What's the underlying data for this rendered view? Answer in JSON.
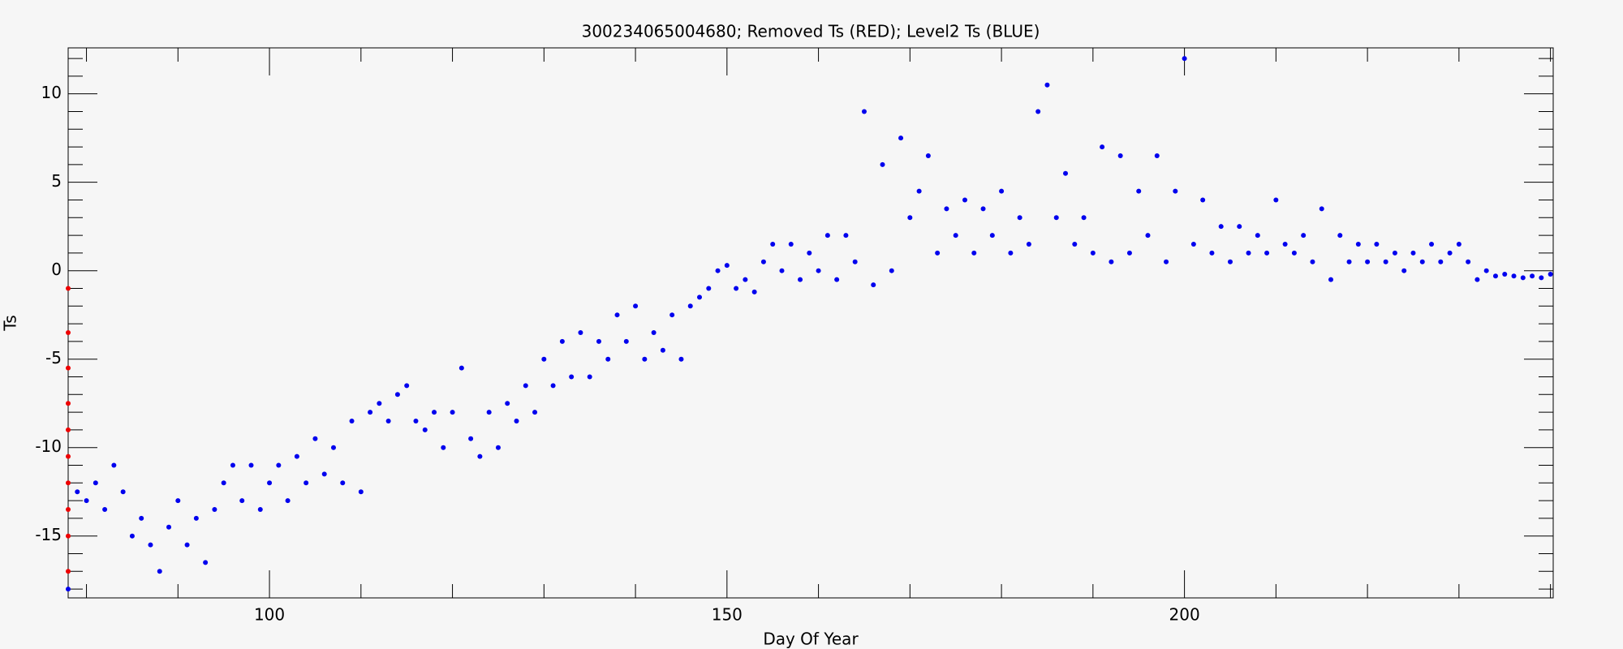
{
  "chart_data": {
    "type": "scatter",
    "title": "300234065004680; Removed Ts (RED); Level2 Ts (BLUE)",
    "xlabel": "Day Of Year",
    "ylabel": "Ts",
    "xlim": [
      78,
      240.3
    ],
    "ylim": [
      -18.5,
      12.6
    ],
    "xticks": [
      100,
      150,
      200
    ],
    "xminorticks": [
      80,
      90,
      110,
      120,
      130,
      140,
      160,
      170,
      180,
      190,
      210,
      220,
      230,
      240
    ],
    "yticks": [
      -15,
      -10,
      -5,
      0,
      5,
      10
    ],
    "yminorticks": [
      -18,
      -17,
      -16,
      -14,
      -13,
      -12,
      -11,
      -9,
      -8,
      -7,
      -6,
      -4,
      -3,
      -2,
      -1,
      1,
      2,
      3,
      4,
      6,
      7,
      8,
      9,
      11,
      12
    ],
    "series": [
      {
        "color": "#0000ee",
        "x": [
          78,
          79,
          80,
          81,
          82,
          83,
          84,
          85,
          86,
          87,
          88,
          89,
          90,
          91,
          92,
          93,
          94,
          95,
          96,
          97,
          98,
          99,
          100,
          101,
          102,
          103,
          104,
          105,
          106,
          107,
          108,
          109,
          110,
          111,
          112,
          113,
          114,
          115,
          116,
          117,
          118,
          119,
          120,
          121,
          122,
          123,
          124,
          125,
          126,
          127,
          128,
          129,
          130,
          131,
          132,
          133,
          134,
          135,
          136,
          137,
          138,
          139,
          140,
          141,
          142,
          143,
          144,
          145,
          146,
          147,
          148,
          149,
          150,
          151,
          152,
          153,
          154,
          155,
          156,
          157,
          158,
          159,
          160,
          161,
          162,
          163,
          164,
          165,
          166,
          167,
          168,
          169,
          170,
          171,
          172,
          173,
          174,
          175,
          176,
          177,
          178,
          179,
          180,
          181,
          182,
          183,
          184,
          185,
          186,
          187,
          188,
          189,
          190,
          191,
          192,
          193,
          194,
          195,
          196,
          197,
          198,
          199,
          200,
          201,
          202,
          203,
          204,
          205,
          206,
          207,
          208,
          209,
          210,
          211,
          212,
          213,
          214,
          215,
          216,
          217,
          218,
          219,
          220,
          221,
          222,
          223,
          224,
          225,
          226,
          227,
          228,
          229,
          230,
          231,
          232,
          233,
          234,
          235,
          236,
          237,
          238,
          239,
          240
        ],
        "y": [
          -18,
          -12.5,
          -13,
          -12,
          -13.5,
          -11,
          -12.5,
          -15,
          -14,
          -15.5,
          -17,
          -14.5,
          -13,
          -15.5,
          -14,
          -16.5,
          -13.5,
          -12,
          -11,
          -13,
          -11,
          -13.5,
          -12,
          -11,
          -13,
          -10.5,
          -12,
          -9.5,
          -11.5,
          -10,
          -12,
          -8.5,
          -12.5,
          -8,
          -7.5,
          -8.5,
          -7,
          -6.5,
          -8.5,
          -9,
          -8,
          -10,
          -8,
          -5.5,
          -9.5,
          -10.5,
          -8,
          -10,
          -7.5,
          -8.5,
          -6.5,
          -8,
          -5,
          -6.5,
          -4,
          -6,
          -3.5,
          -6,
          -4,
          -5,
          -2.5,
          -4,
          -2,
          -5,
          -3.5,
          -4.5,
          -2.5,
          -5,
          -2,
          -1.5,
          -1,
          0,
          0.3,
          -1,
          -0.5,
          -1.2,
          0.5,
          1.5,
          0,
          1.5,
          -0.5,
          1,
          0,
          2,
          -0.5,
          2,
          0.5,
          9,
          -0.8,
          6,
          0,
          7.5,
          3,
          4.5,
          6.5,
          1,
          3.5,
          2,
          4,
          1,
          3.5,
          2,
          4.5,
          1,
          3,
          1.5,
          9,
          10.5,
          3,
          5.5,
          1.5,
          3,
          1,
          7,
          0.5,
          6.5,
          1,
          4.5,
          2,
          6.5,
          0.5,
          4.5,
          12,
          1.5,
          4,
          1,
          2.5,
          0.5,
          2.5,
          1,
          2,
          1,
          4,
          1.5,
          1,
          2,
          0.5,
          3.5,
          -0.5,
          2,
          0.5,
          1.5,
          0.5,
          1.5,
          0.5,
          1,
          0,
          1,
          0.5,
          1.5,
          0.5,
          1,
          1.5,
          0.5,
          -0.5,
          0,
          -0.3,
          -0.2,
          -0.3,
          -0.4,
          -0.3,
          -0.4,
          -0.2
        ]
      },
      {
        "color": "#ee0000",
        "x": [
          78,
          78,
          78,
          78,
          78,
          78,
          78,
          78,
          78,
          78
        ],
        "y": [
          -1,
          -3.5,
          -5.5,
          -7.5,
          -9,
          -10.5,
          -12,
          -13.5,
          -15,
          -17
        ]
      }
    ]
  }
}
